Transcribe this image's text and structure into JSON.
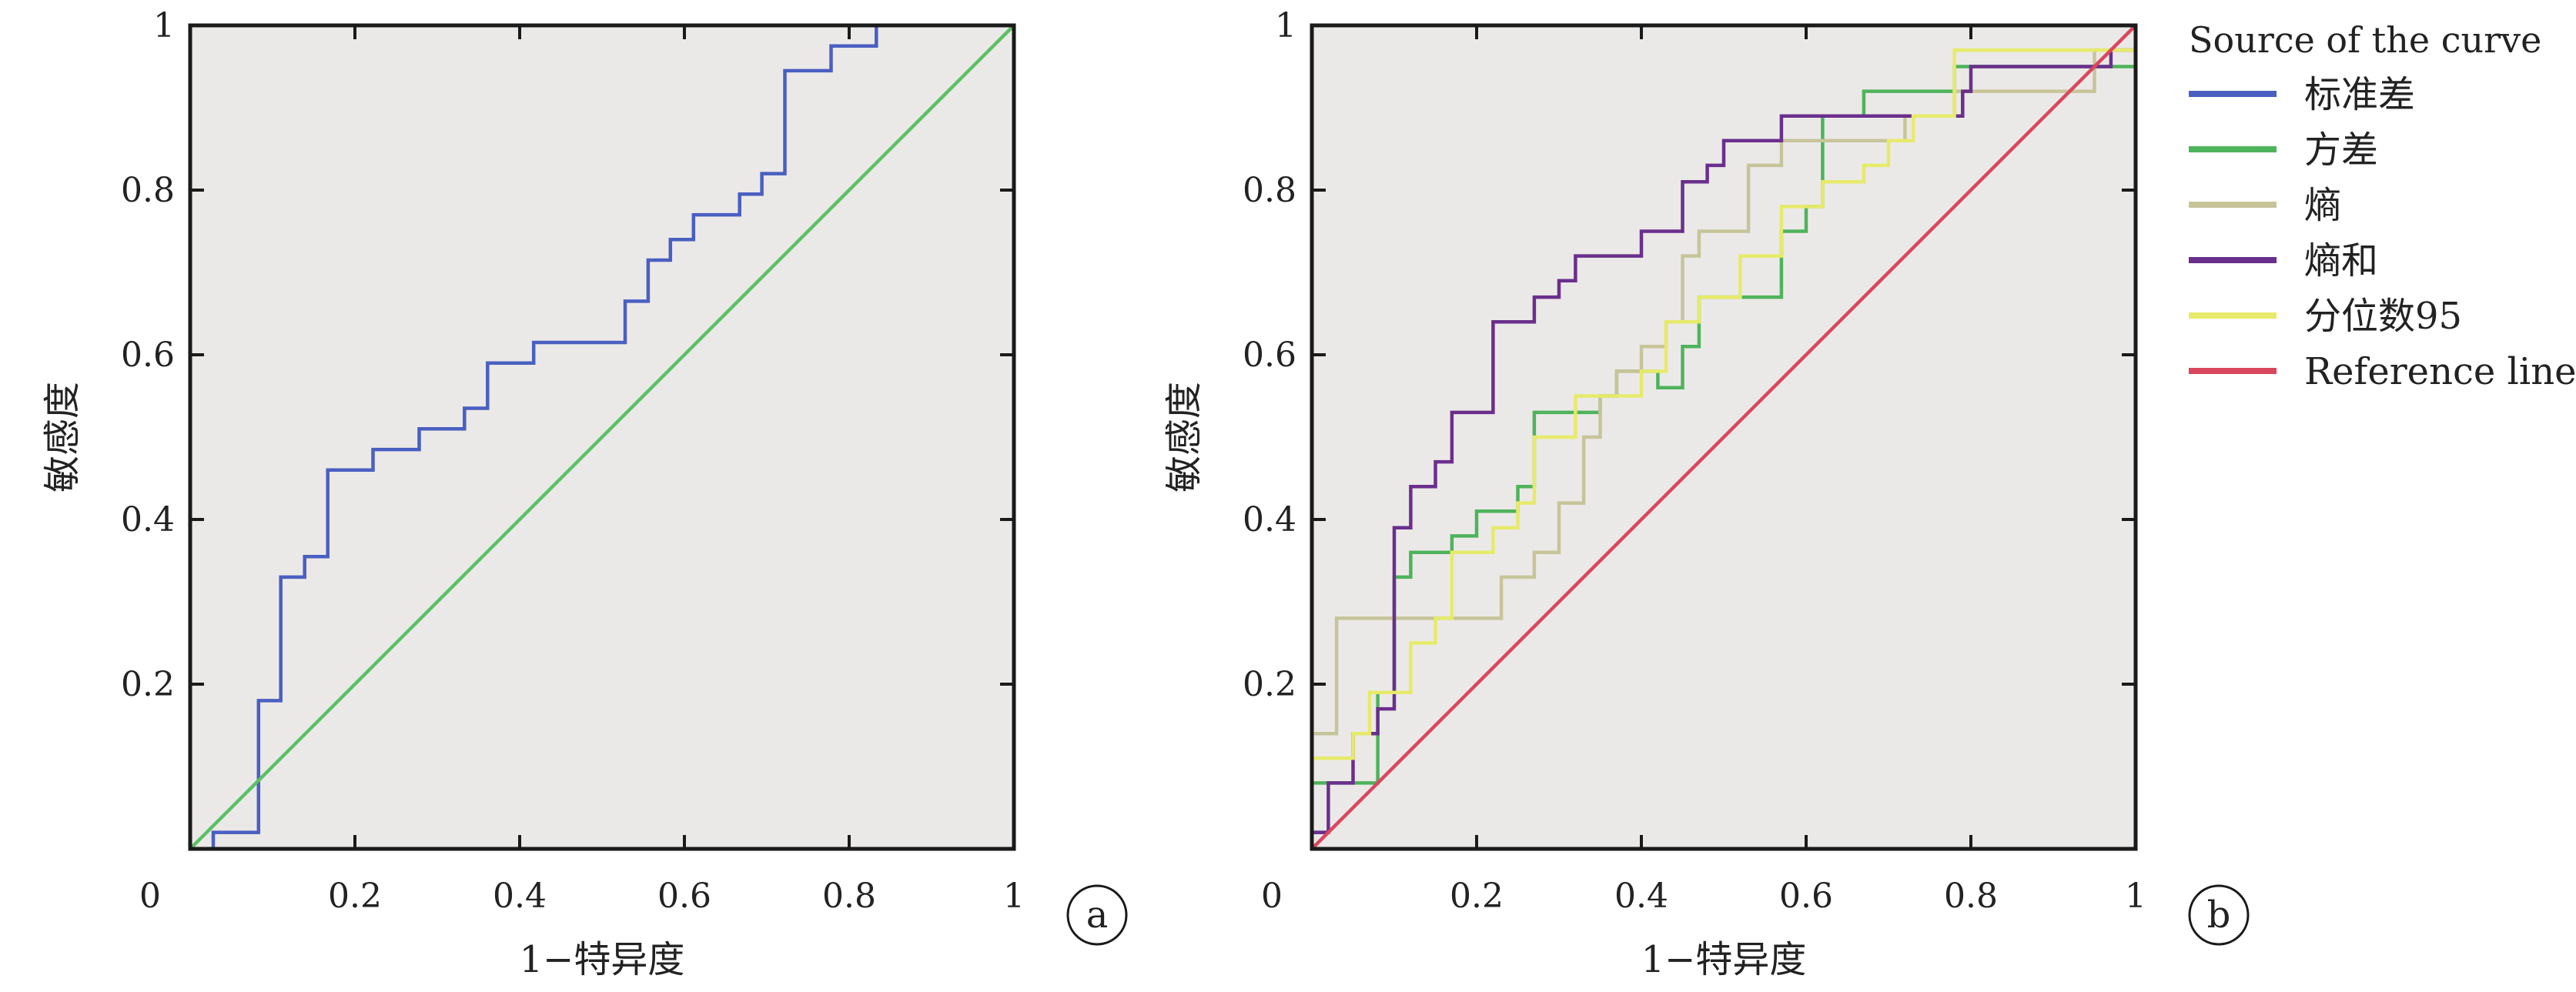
{
  "chart_data": [
    {
      "type": "line",
      "panel_label": "a",
      "xlabel": "1−特异度",
      "ylabel": "敏感度",
      "xlim": [
        0,
        1
      ],
      "ylim": [
        0,
        1
      ],
      "x_ticks": [
        "0",
        "0.2",
        "0.4",
        "0.6",
        "0.8",
        "1"
      ],
      "y_ticks": [
        "0.2",
        "0.4",
        "0.6",
        "0.8",
        "1"
      ],
      "grid": false,
      "background": "#ebe9e7",
      "series": [
        {
          "color": "#4a5fc1",
          "points": [
            [
              0,
              0
            ],
            [
              0.028,
              0
            ],
            [
              0.028,
              0.02
            ],
            [
              0.083,
              0.02
            ],
            [
              0.083,
              0.18
            ],
            [
              0.11,
              0.18
            ],
            [
              0.11,
              0.33
            ],
            [
              0.139,
              0.33
            ],
            [
              0.139,
              0.355
            ],
            [
              0.167,
              0.355
            ],
            [
              0.167,
              0.46
            ],
            [
              0.222,
              0.46
            ],
            [
              0.222,
              0.485
            ],
            [
              0.278,
              0.485
            ],
            [
              0.278,
              0.51
            ],
            [
              0.333,
              0.51
            ],
            [
              0.333,
              0.535
            ],
            [
              0.361,
              0.535
            ],
            [
              0.361,
              0.59
            ],
            [
              0.417,
              0.59
            ],
            [
              0.417,
              0.615
            ],
            [
              0.528,
              0.615
            ],
            [
              0.528,
              0.665
            ],
            [
              0.556,
              0.665
            ],
            [
              0.556,
              0.715
            ],
            [
              0.583,
              0.715
            ],
            [
              0.583,
              0.74
            ],
            [
              0.611,
              0.74
            ],
            [
              0.611,
              0.77
            ],
            [
              0.667,
              0.77
            ],
            [
              0.667,
              0.795
            ],
            [
              0.694,
              0.795
            ],
            [
              0.694,
              0.82
            ],
            [
              0.722,
              0.82
            ],
            [
              0.722,
              0.945
            ],
            [
              0.778,
              0.945
            ],
            [
              0.778,
              0.975
            ],
            [
              0.833,
              0.975
            ],
            [
              0.833,
              1
            ],
            [
              1,
              1
            ]
          ]
        },
        {
          "color": "#5cc066",
          "points": [
            [
              0,
              0
            ],
            [
              1,
              1
            ]
          ]
        }
      ]
    },
    {
      "type": "line",
      "panel_label": "b",
      "xlabel": "1−特异度",
      "ylabel": "敏感度",
      "xlim": [
        0,
        1
      ],
      "ylim": [
        0,
        1
      ],
      "x_ticks": [
        "0",
        "0.2",
        "0.4",
        "0.6",
        "0.8",
        "1"
      ],
      "y_ticks": [
        "0.2",
        "0.4",
        "0.6",
        "0.8",
        "1"
      ],
      "grid": false,
      "background": "#ebe9e7",
      "legend_title": "Source of the curve",
      "legend_position": "right",
      "series": [
        {
          "name": "标准差",
          "color": "#4a5fc1",
          "points": [
            [
              0,
              0.02
            ],
            [
              0.02,
              0.02
            ]
          ]
        },
        {
          "name": "方差",
          "color": "#4fb35c",
          "points": [
            [
              0,
              0
            ],
            [
              0,
              0.08
            ],
            [
              0.08,
              0.08
            ],
            [
              0.08,
              0.19
            ],
            [
              0.1,
              0.19
            ],
            [
              0.1,
              0.33
            ],
            [
              0.12,
              0.33
            ],
            [
              0.12,
              0.36
            ],
            [
              0.17,
              0.36
            ],
            [
              0.17,
              0.38
            ],
            [
              0.2,
              0.38
            ],
            [
              0.2,
              0.41
            ],
            [
              0.25,
              0.41
            ],
            [
              0.25,
              0.44
            ],
            [
              0.27,
              0.44
            ],
            [
              0.27,
              0.53
            ],
            [
              0.35,
              0.53
            ],
            [
              0.35,
              0.55
            ],
            [
              0.37,
              0.55
            ],
            [
              0.37,
              0.58
            ],
            [
              0.42,
              0.58
            ],
            [
              0.42,
              0.56
            ],
            [
              0.45,
              0.56
            ],
            [
              0.45,
              0.61
            ],
            [
              0.47,
              0.61
            ],
            [
              0.47,
              0.67
            ],
            [
              0.57,
              0.67
            ],
            [
              0.57,
              0.75
            ],
            [
              0.6,
              0.75
            ],
            [
              0.6,
              0.78
            ],
            [
              0.62,
              0.78
            ],
            [
              0.62,
              0.89
            ],
            [
              0.67,
              0.89
            ],
            [
              0.67,
              0.92
            ],
            [
              0.75,
              0.92
            ],
            [
              0.75,
              0.92
            ],
            [
              0.78,
              0.92
            ],
            [
              0.78,
              0.95
            ],
            [
              1,
              0.95
            ]
          ]
        },
        {
          "name": "熵",
          "color": "#c7c49a",
          "points": [
            [
              0,
              0
            ],
            [
              0,
              0.14
            ],
            [
              0.03,
              0.14
            ],
            [
              0.03,
              0.28
            ],
            [
              0.07,
              0.28
            ],
            [
              0.07,
              0.28
            ],
            [
              0.23,
              0.28
            ],
            [
              0.23,
              0.33
            ],
            [
              0.27,
              0.33
            ],
            [
              0.27,
              0.36
            ],
            [
              0.3,
              0.36
            ],
            [
              0.3,
              0.42
            ],
            [
              0.33,
              0.42
            ],
            [
              0.33,
              0.5
            ],
            [
              0.35,
              0.5
            ],
            [
              0.35,
              0.55
            ],
            [
              0.37,
              0.55
            ],
            [
              0.37,
              0.58
            ],
            [
              0.4,
              0.58
            ],
            [
              0.4,
              0.61
            ],
            [
              0.43,
              0.61
            ],
            [
              0.43,
              0.64
            ],
            [
              0.45,
              0.64
            ],
            [
              0.45,
              0.72
            ],
            [
              0.47,
              0.72
            ],
            [
              0.47,
              0.75
            ],
            [
              0.5,
              0.75
            ],
            [
              0.5,
              0.75
            ],
            [
              0.53,
              0.75
            ],
            [
              0.53,
              0.83
            ],
            [
              0.57,
              0.83
            ],
            [
              0.57,
              0.86
            ],
            [
              0.72,
              0.86
            ],
            [
              0.72,
              0.89
            ],
            [
              0.78,
              0.89
            ],
            [
              0.78,
              0.92
            ],
            [
              0.95,
              0.92
            ],
            [
              0.95,
              0.97
            ],
            [
              1,
              0.97
            ]
          ]
        },
        {
          "name": "熵和",
          "color": "#6a2f8c",
          "points": [
            [
              0,
              0.02
            ],
            [
              0.02,
              0.02
            ],
            [
              0.02,
              0.08
            ],
            [
              0.05,
              0.08
            ],
            [
              0.05,
              0.14
            ],
            [
              0.08,
              0.14
            ],
            [
              0.08,
              0.17
            ],
            [
              0.1,
              0.17
            ],
            [
              0.1,
              0.39
            ],
            [
              0.12,
              0.39
            ],
            [
              0.12,
              0.44
            ],
            [
              0.15,
              0.44
            ],
            [
              0.15,
              0.47
            ],
            [
              0.17,
              0.47
            ],
            [
              0.17,
              0.53
            ],
            [
              0.22,
              0.53
            ],
            [
              0.22,
              0.64
            ],
            [
              0.27,
              0.64
            ],
            [
              0.27,
              0.67
            ],
            [
              0.3,
              0.67
            ],
            [
              0.3,
              0.69
            ],
            [
              0.32,
              0.69
            ],
            [
              0.32,
              0.72
            ],
            [
              0.4,
              0.72
            ],
            [
              0.4,
              0.75
            ],
            [
              0.45,
              0.75
            ],
            [
              0.45,
              0.81
            ],
            [
              0.48,
              0.81
            ],
            [
              0.48,
              0.83
            ],
            [
              0.5,
              0.83
            ],
            [
              0.5,
              0.86
            ],
            [
              0.57,
              0.86
            ],
            [
              0.57,
              0.89
            ],
            [
              0.6,
              0.89
            ],
            [
              0.6,
              0.89
            ],
            [
              0.79,
              0.89
            ],
            [
              0.79,
              0.92
            ],
            [
              0.8,
              0.92
            ],
            [
              0.8,
              0.95
            ],
            [
              0.97,
              0.95
            ],
            [
              0.97,
              0.97
            ],
            [
              1,
              0.97
            ],
            [
              1,
              1
            ]
          ]
        },
        {
          "name": "分位数95",
          "color": "#e6ea6a",
          "points": [
            [
              0,
              0
            ],
            [
              0,
              0.11
            ],
            [
              0.05,
              0.11
            ],
            [
              0.05,
              0.14
            ],
            [
              0.07,
              0.14
            ],
            [
              0.07,
              0.19
            ],
            [
              0.12,
              0.19
            ],
            [
              0.12,
              0.25
            ],
            [
              0.15,
              0.25
            ],
            [
              0.15,
              0.28
            ],
            [
              0.17,
              0.28
            ],
            [
              0.17,
              0.36
            ],
            [
              0.22,
              0.36
            ],
            [
              0.22,
              0.39
            ],
            [
              0.25,
              0.39
            ],
            [
              0.25,
              0.42
            ],
            [
              0.27,
              0.42
            ],
            [
              0.27,
              0.5
            ],
            [
              0.32,
              0.5
            ],
            [
              0.32,
              0.55
            ],
            [
              0.4,
              0.55
            ],
            [
              0.4,
              0.58
            ],
            [
              0.43,
              0.58
            ],
            [
              0.43,
              0.64
            ],
            [
              0.47,
              0.64
            ],
            [
              0.47,
              0.67
            ],
            [
              0.52,
              0.67
            ],
            [
              0.52,
              0.72
            ],
            [
              0.57,
              0.72
            ],
            [
              0.57,
              0.78
            ],
            [
              0.62,
              0.78
            ],
            [
              0.62,
              0.81
            ],
            [
              0.67,
              0.81
            ],
            [
              0.67,
              0.83
            ],
            [
              0.7,
              0.83
            ],
            [
              0.7,
              0.86
            ],
            [
              0.73,
              0.86
            ],
            [
              0.73,
              0.89
            ],
            [
              0.75,
              0.89
            ],
            [
              0.75,
              0.89
            ],
            [
              0.78,
              0.89
            ],
            [
              0.78,
              0.97
            ],
            [
              1,
              0.97
            ]
          ]
        },
        {
          "name": "Reference line",
          "color": "#d9475e",
          "points": [
            [
              0,
              0
            ],
            [
              1,
              1
            ]
          ]
        }
      ]
    }
  ]
}
